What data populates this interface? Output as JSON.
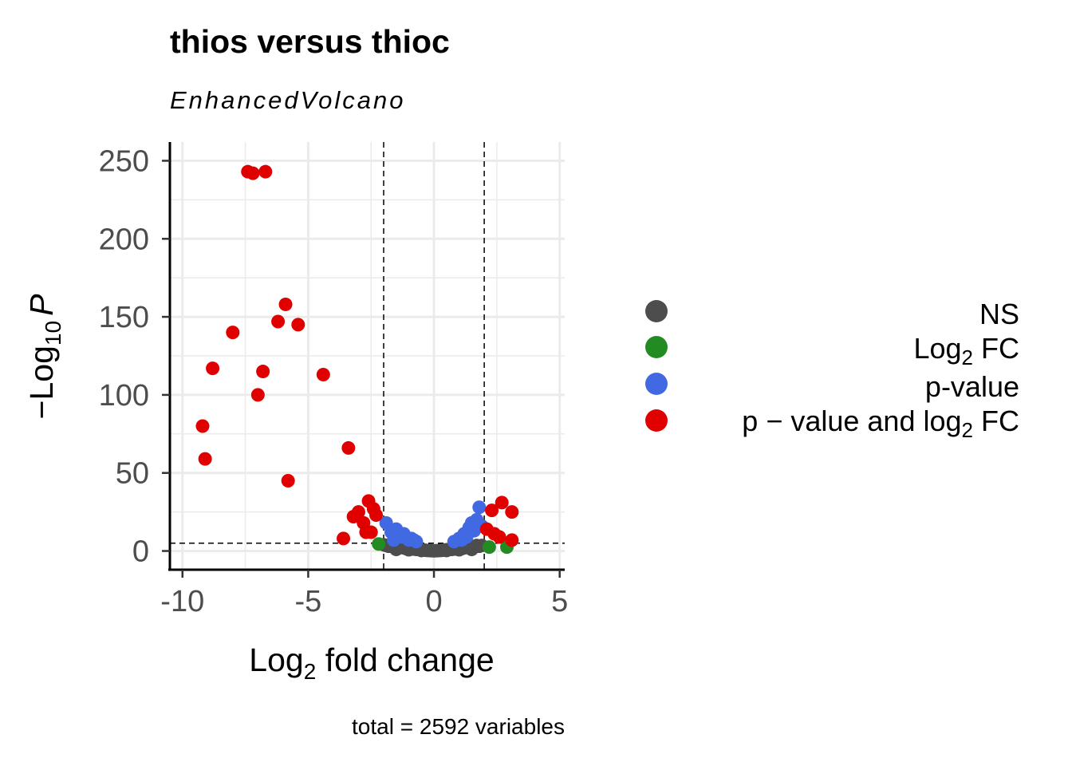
{
  "chart_data": {
    "type": "scatter",
    "title": "thios versus thioc",
    "subtitle": "EnhancedVolcano",
    "xlabel": "Log2 fold change",
    "xlabel_main": "Log",
    "xlabel_sub": "2",
    "xlabel_rest": " fold change",
    "ylabel": "-Log10 P",
    "ylabel_main": "−Log",
    "ylabel_sub": "10",
    "ylabel_var": "P",
    "caption": "total = 2592 variables",
    "xlim": [
      -10.5,
      5.2
    ],
    "ylim": [
      -12,
      262
    ],
    "xticks": [
      -10,
      -5,
      0,
      5
    ],
    "xtick_labels": [
      "-10",
      "-5",
      "0",
      "5"
    ],
    "yticks": [
      0,
      50,
      100,
      150,
      200,
      250
    ],
    "ytick_labels": [
      "0",
      "50",
      "100",
      "150",
      "200",
      "250"
    ],
    "grid": true,
    "legend_position": "right",
    "thresholds": {
      "log2fc": [
        -2,
        2
      ],
      "neg_log10_p": 5
    },
    "series": [
      {
        "name": "NS",
        "color": "#4d4d4d",
        "points": [
          [
            -2.0,
            4
          ],
          [
            -1.9,
            3.5
          ],
          [
            -1.8,
            3
          ],
          [
            -1.7,
            3.5
          ],
          [
            -1.6,
            2.5
          ],
          [
            -1.5,
            3
          ],
          [
            -1.4,
            2
          ],
          [
            -1.3,
            2.5
          ],
          [
            -1.2,
            2
          ],
          [
            -1.1,
            1.5
          ],
          [
            -1.0,
            2
          ],
          [
            -0.9,
            1.5
          ],
          [
            -0.8,
            1.2
          ],
          [
            -0.7,
            1
          ],
          [
            -0.6,
            1
          ],
          [
            -0.5,
            0.8
          ],
          [
            -0.4,
            0.6
          ],
          [
            -0.3,
            0.4
          ],
          [
            -0.2,
            0.3
          ],
          [
            -0.1,
            0.2
          ],
          [
            0.0,
            0.1
          ],
          [
            0.1,
            0.2
          ],
          [
            0.2,
            0.3
          ],
          [
            0.3,
            0.4
          ],
          [
            0.4,
            0.6
          ],
          [
            0.5,
            0.8
          ],
          [
            0.6,
            1
          ],
          [
            0.7,
            1
          ],
          [
            0.8,
            1.2
          ],
          [
            0.9,
            1.5
          ],
          [
            1.0,
            2
          ],
          [
            1.1,
            1.5
          ],
          [
            1.2,
            2
          ],
          [
            1.3,
            2.5
          ],
          [
            1.4,
            2
          ],
          [
            1.5,
            3
          ],
          [
            1.6,
            2.5
          ],
          [
            1.7,
            3.5
          ],
          [
            1.8,
            3
          ],
          [
            1.9,
            3.5
          ],
          [
            -1.5,
            1
          ],
          [
            -1.0,
            0.8
          ],
          [
            -0.5,
            0.3
          ],
          [
            0.5,
            0.3
          ],
          [
            1.0,
            0.8
          ],
          [
            1.5,
            1
          ]
        ]
      },
      {
        "name": "Log2 FC",
        "name_main": "Log",
        "name_sub": "2",
        "name_rest": " FC",
        "color": "#228b22",
        "points": [
          [
            -2.2,
            4.5
          ],
          [
            2.2,
            2.5
          ],
          [
            2.9,
            2.5
          ]
        ]
      },
      {
        "name": "p-value",
        "color": "#4169e1",
        "points": [
          [
            -1.9,
            18
          ],
          [
            -1.5,
            14
          ],
          [
            -1.2,
            11
          ],
          [
            -0.9,
            8
          ],
          [
            -0.7,
            6
          ],
          [
            -1.7,
            12
          ],
          [
            -1.3,
            9
          ],
          [
            -1.0,
            7
          ],
          [
            -1.6,
            7
          ],
          [
            -1.4,
            10
          ],
          [
            -0.8,
            7
          ],
          [
            1.0,
            8
          ],
          [
            1.2,
            11
          ],
          [
            1.4,
            15
          ],
          [
            1.5,
            18
          ],
          [
            1.8,
            28
          ],
          [
            1.7,
            20
          ],
          [
            1.6,
            13
          ],
          [
            1.3,
            9
          ],
          [
            1.1,
            7
          ],
          [
            1.9,
            16
          ],
          [
            0.8,
            6
          ]
        ]
      },
      {
        "name": "p − value and log2 FC",
        "name_main": "p − value and log",
        "name_sub": "2",
        "name_rest": " FC",
        "color": "#e00000",
        "points": [
          [
            -7.4,
            243
          ],
          [
            -7.2,
            242
          ],
          [
            -6.7,
            243
          ],
          [
            -5.9,
            158
          ],
          [
            -6.2,
            147
          ],
          [
            -5.4,
            145
          ],
          [
            -8.0,
            140
          ],
          [
            -8.8,
            117
          ],
          [
            -6.8,
            115
          ],
          [
            -4.4,
            113
          ],
          [
            -7.0,
            100
          ],
          [
            -9.2,
            80
          ],
          [
            -9.1,
            59
          ],
          [
            -3.4,
            66
          ],
          [
            -5.8,
            45
          ],
          [
            -2.6,
            32
          ],
          [
            -2.4,
            27
          ],
          [
            -3.0,
            25
          ],
          [
            -2.3,
            23
          ],
          [
            -3.2,
            22
          ],
          [
            -2.8,
            18
          ],
          [
            -2.7,
            12
          ],
          [
            -3.6,
            8
          ],
          [
            -2.5,
            12
          ],
          [
            2.7,
            31
          ],
          [
            3.1,
            25
          ],
          [
            2.3,
            26
          ],
          [
            2.1,
            14
          ],
          [
            2.6,
            9
          ],
          [
            3.1,
            7
          ],
          [
            2.4,
            11
          ]
        ]
      }
    ]
  }
}
